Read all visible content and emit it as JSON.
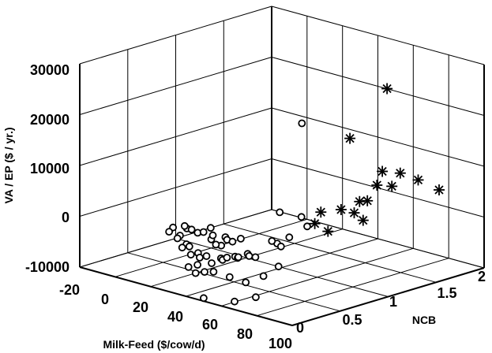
{
  "chart_data": {
    "type": "scatter",
    "projection": "3d",
    "title": "",
    "xlabel": "Milk-Feed ($/cow/d)",
    "ylabel": "NCB",
    "zlabel": "VA / EP ($ / yr.)",
    "xlim": [
      -20,
      100
    ],
    "ylim": [
      0,
      2
    ],
    "zlim": [
      -10000,
      30000
    ],
    "x_ticks": [
      "-20",
      "0",
      "20",
      "40",
      "60",
      "80",
      "100"
    ],
    "y_ticks": [
      "0",
      "0.5",
      "1",
      "1.5",
      "2"
    ],
    "z_ticks": [
      "-10000",
      "0",
      "10000",
      "20000",
      "30000"
    ],
    "grid": true,
    "series": [
      {
        "marker": "circle",
        "points": [
          [
            54,
            0.95,
            20000
          ],
          [
            51,
            1.0,
            1000
          ],
          [
            57,
            0.95,
            0
          ],
          [
            55,
            0.8,
            -1500
          ],
          [
            59,
            0.6,
            -1200
          ],
          [
            72,
            0.4,
            600
          ],
          [
            56,
            0.6,
            -1000
          ],
          [
            55,
            0.7,
            4000
          ],
          [
            11,
            0.4,
            -1500
          ],
          [
            16,
            0.38,
            -2500
          ],
          [
            21,
            0.36,
            -500
          ],
          [
            26,
            0.38,
            -1000
          ],
          [
            23,
            0.3,
            500
          ],
          [
            28,
            0.28,
            400
          ],
          [
            32,
            0.33,
            0
          ],
          [
            35,
            0.35,
            1000
          ],
          [
            38,
            0.3,
            -700
          ],
          [
            40,
            0.28,
            400
          ],
          [
            42,
            0.33,
            -1700
          ],
          [
            45,
            0.22,
            -600
          ],
          [
            46,
            0.3,
            500
          ],
          [
            48,
            0.28,
            300
          ],
          [
            50,
            0.3,
            0
          ],
          [
            52,
            0.35,
            500
          ],
          [
            18,
            0.23,
            -700
          ],
          [
            20,
            0.28,
            -2100
          ],
          [
            24,
            0.3,
            -3000
          ],
          [
            27,
            0.2,
            -2800
          ],
          [
            30,
            0.22,
            -2400
          ],
          [
            33,
            0.18,
            -3500
          ],
          [
            36,
            0.2,
            -3000
          ],
          [
            38,
            0.18,
            -3600
          ],
          [
            40,
            0.12,
            -4500
          ],
          [
            44,
            0.14,
            -2500
          ],
          [
            48,
            0.12,
            -3400
          ],
          [
            50,
            0.18,
            -2600
          ],
          [
            52,
            0.16,
            -2600
          ],
          [
            55,
            0.15,
            -1800
          ],
          [
            58,
            0.18,
            -1500
          ],
          [
            60,
            0.17,
            -1500
          ],
          [
            62,
            0.14,
            -1000
          ],
          [
            64,
            0.2,
            -500
          ],
          [
            67,
            0.16,
            -400
          ],
          [
            70,
            0.17,
            -400
          ],
          [
            36,
            0.1,
            -5200
          ],
          [
            40,
            0.1,
            -6000
          ],
          [
            44,
            0.12,
            -5500
          ],
          [
            48,
            0.14,
            -5200
          ],
          [
            56,
            0.16,
            -5600
          ],
          [
            64,
            0.18,
            -6000
          ],
          [
            74,
            0.1,
            -7500
          ],
          [
            74,
            0.18,
            -3800
          ],
          [
            76,
            0.3,
            -2400
          ],
          [
            62,
            0.1,
            -9500
          ],
          [
            50,
            0.0,
            -9400
          ]
        ]
      },
      {
        "marker": "asterisk",
        "points": [
          [
            75,
            1.45,
            26000
          ],
          [
            73,
            1.1,
            18000
          ],
          [
            75,
            1.4,
            10000
          ],
          [
            77,
            1.55,
            9000
          ],
          [
            79,
            1.7,
            7000
          ],
          [
            72,
            1.4,
            7000
          ],
          [
            73,
            1.2,
            5000
          ],
          [
            72,
            1.3,
            4500
          ],
          [
            75,
            1.5,
            6500
          ],
          [
            68,
            1.1,
            3500
          ],
          [
            70,
            1.2,
            2500
          ],
          [
            62,
            1.0,
            3000
          ],
          [
            75,
            1.2,
            1500
          ],
          [
            64,
            0.9,
            1500
          ],
          [
            66,
            1.0,
            -400
          ],
          [
            80,
            1.9,
            4000
          ]
        ]
      }
    ]
  }
}
